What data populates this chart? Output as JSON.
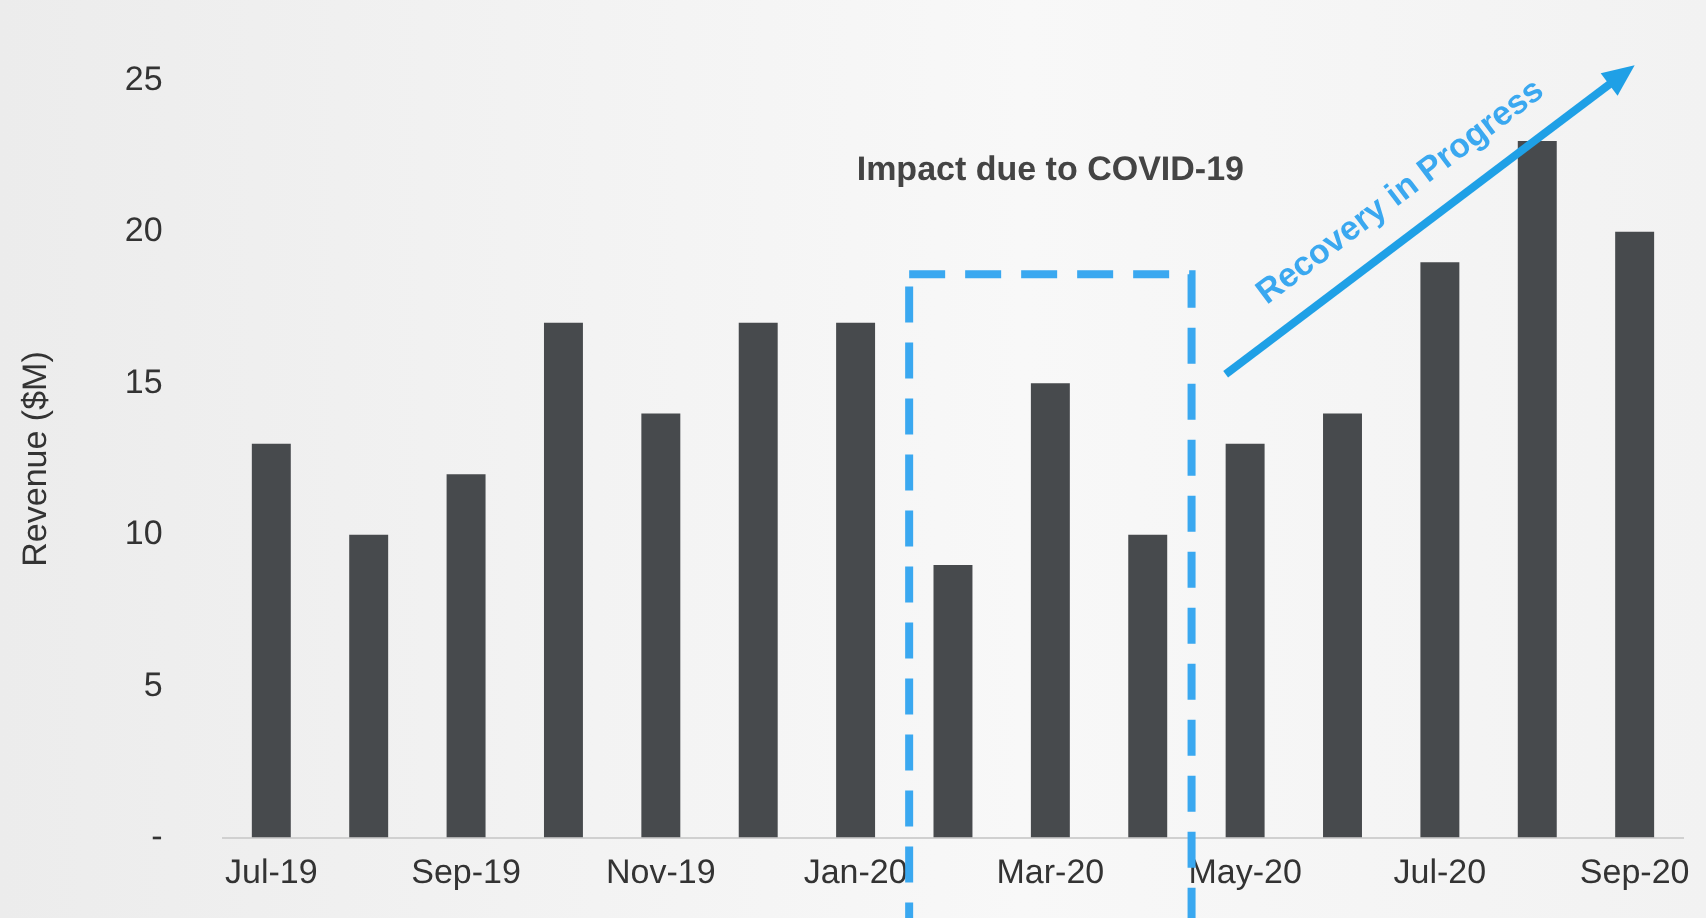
{
  "chart_data": {
    "type": "bar",
    "ylabel": "Revenue ($M)",
    "categories": [
      "Jul-19",
      null,
      "Sep-19",
      null,
      "Nov-19",
      null,
      "Jan-20",
      null,
      "Mar-20",
      null,
      "May-20",
      null,
      "Jul-20",
      null,
      "Sep-20"
    ],
    "values": [
      13,
      10,
      12,
      17,
      14,
      17,
      17,
      9,
      15,
      10,
      13,
      14,
      19,
      23,
      20
    ],
    "color": "#474a4d",
    "ylim": [
      0,
      25
    ],
    "yticks": [
      {
        "value": 0,
        "label": "-"
      },
      5,
      10,
      15,
      20,
      25
    ],
    "grid": false,
    "legend": false,
    "annotations": [
      "Impact due to COVID-19",
      "Recovery in Progress"
    ]
  }
}
